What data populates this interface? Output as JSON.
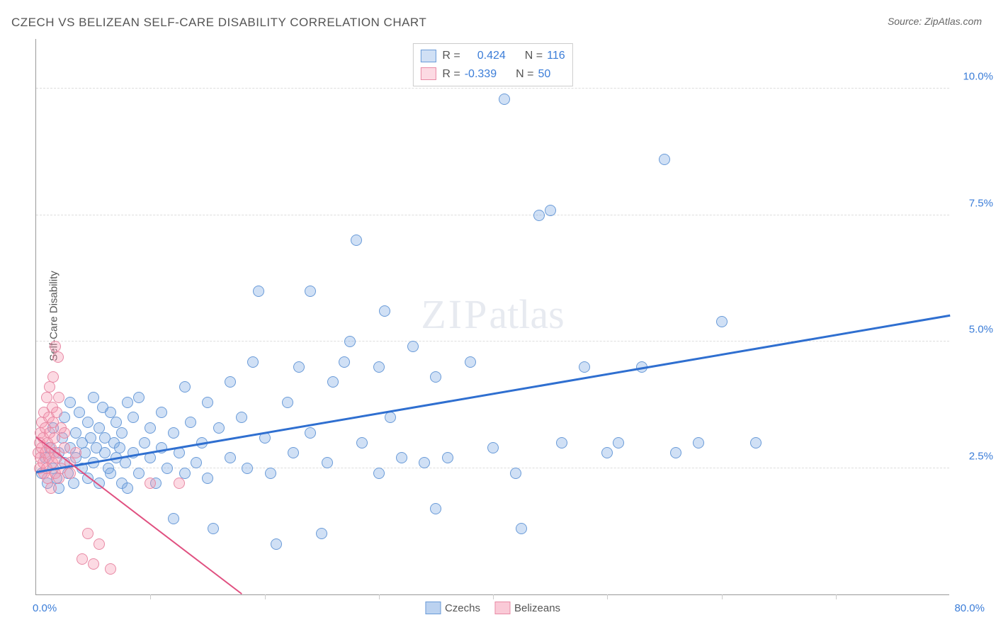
{
  "title": "CZECH VS BELIZEAN SELF-CARE DISABILITY CORRELATION CHART",
  "source": "Source: ZipAtlas.com",
  "ylabel": "Self-Care Disability",
  "watermark_zip": "ZIP",
  "watermark_atlas": "atlas",
  "chart": {
    "type": "scatter",
    "xlim": [
      0,
      80
    ],
    "ylim": [
      0,
      11
    ],
    "x_tick_step": 10,
    "y_ticks": [
      2.5,
      5.0,
      7.5,
      10.0
    ],
    "y_tick_labels": [
      "2.5%",
      "5.0%",
      "7.5%",
      "10.0%"
    ],
    "x_min_label": "0.0%",
    "x_max_label": "80.0%",
    "background_color": "#ffffff",
    "grid_color": "#dddddd",
    "axis_color": "#999999",
    "marker_radius": 8,
    "marker_stroke_width": 1.2,
    "series": [
      {
        "name": "Czechs",
        "fill": "rgba(120,165,225,0.35)",
        "stroke": "#6a9bd8",
        "trend_color": "#2f6fd0",
        "trend_width": 2.5,
        "R": "0.424",
        "N": "116",
        "trend": {
          "x1": 0,
          "y1": 2.4,
          "x2": 80,
          "y2": 5.5
        },
        "points": [
          [
            0.5,
            2.4
          ],
          [
            0.8,
            2.7
          ],
          [
            1.0,
            2.2
          ],
          [
            1.2,
            2.9
          ],
          [
            1.5,
            2.5
          ],
          [
            1.5,
            3.3
          ],
          [
            1.8,
            2.3
          ],
          [
            2.0,
            2.8
          ],
          [
            2.0,
            2.1
          ],
          [
            2.3,
            3.1
          ],
          [
            2.5,
            2.6
          ],
          [
            2.5,
            3.5
          ],
          [
            2.8,
            2.4
          ],
          [
            3.0,
            2.9
          ],
          [
            3.0,
            3.8
          ],
          [
            3.3,
            2.2
          ],
          [
            3.5,
            3.2
          ],
          [
            3.5,
            2.7
          ],
          [
            3.8,
            3.6
          ],
          [
            4.0,
            2.5
          ],
          [
            4.0,
            3.0
          ],
          [
            4.3,
            2.8
          ],
          [
            4.5,
            3.4
          ],
          [
            4.5,
            2.3
          ],
          [
            4.8,
            3.1
          ],
          [
            5.0,
            2.6
          ],
          [
            5.0,
            3.9
          ],
          [
            5.3,
            2.9
          ],
          [
            5.5,
            3.3
          ],
          [
            5.5,
            2.2
          ],
          [
            5.8,
            3.7
          ],
          [
            6.0,
            2.8
          ],
          [
            6.0,
            3.1
          ],
          [
            6.3,
            2.5
          ],
          [
            6.5,
            2.4
          ],
          [
            6.5,
            3.6
          ],
          [
            6.8,
            3.0
          ],
          [
            7.0,
            2.7
          ],
          [
            7.0,
            3.4
          ],
          [
            7.3,
            2.9
          ],
          [
            7.5,
            2.2
          ],
          [
            7.5,
            3.2
          ],
          [
            7.8,
            2.6
          ],
          [
            8.0,
            3.8
          ],
          [
            8.0,
            2.1
          ],
          [
            8.5,
            2.8
          ],
          [
            8.5,
            3.5
          ],
          [
            9.0,
            2.4
          ],
          [
            9.0,
            3.9
          ],
          [
            9.5,
            3.0
          ],
          [
            10.0,
            2.7
          ],
          [
            10.0,
            3.3
          ],
          [
            10.5,
            2.2
          ],
          [
            11.0,
            3.6
          ],
          [
            11.0,
            2.9
          ],
          [
            11.5,
            2.5
          ],
          [
            12.0,
            3.2
          ],
          [
            12.0,
            1.5
          ],
          [
            12.5,
            2.8
          ],
          [
            13.0,
            4.1
          ],
          [
            13.0,
            2.4
          ],
          [
            13.5,
            3.4
          ],
          [
            14.0,
            2.6
          ],
          [
            14.5,
            3.0
          ],
          [
            15.0,
            2.3
          ],
          [
            15.0,
            3.8
          ],
          [
            15.5,
            1.3
          ],
          [
            16.0,
            3.3
          ],
          [
            17.0,
            2.7
          ],
          [
            17.0,
            4.2
          ],
          [
            18.0,
            3.5
          ],
          [
            18.5,
            2.5
          ],
          [
            19.0,
            4.6
          ],
          [
            19.5,
            6.0
          ],
          [
            20.0,
            3.1
          ],
          [
            20.5,
            2.4
          ],
          [
            21.0,
            1.0
          ],
          [
            22.0,
            3.8
          ],
          [
            22.5,
            2.8
          ],
          [
            23.0,
            4.5
          ],
          [
            24.0,
            6.0
          ],
          [
            24.0,
            3.2
          ],
          [
            25.0,
            1.2
          ],
          [
            25.5,
            2.6
          ],
          [
            26.0,
            4.2
          ],
          [
            27.0,
            4.6
          ],
          [
            27.5,
            5.0
          ],
          [
            28.0,
            7.0
          ],
          [
            28.5,
            3.0
          ],
          [
            30.0,
            2.4
          ],
          [
            30.0,
            4.5
          ],
          [
            30.5,
            5.6
          ],
          [
            31.0,
            3.5
          ],
          [
            32.0,
            2.7
          ],
          [
            33.0,
            4.9
          ],
          [
            34.0,
            2.6
          ],
          [
            35.0,
            4.3
          ],
          [
            35.0,
            1.7
          ],
          [
            36.0,
            2.7
          ],
          [
            38.0,
            4.6
          ],
          [
            40.0,
            2.9
          ],
          [
            41.0,
            9.8
          ],
          [
            42.0,
            2.4
          ],
          [
            42.5,
            1.3
          ],
          [
            44.0,
            7.5
          ],
          [
            45.0,
            7.6
          ],
          [
            46.0,
            3.0
          ],
          [
            48.0,
            4.5
          ],
          [
            50.0,
            2.8
          ],
          [
            51.0,
            3.0
          ],
          [
            53.0,
            4.5
          ],
          [
            55.0,
            8.6
          ],
          [
            56.0,
            2.8
          ],
          [
            58.0,
            3.0
          ],
          [
            60.0,
            5.4
          ],
          [
            63.0,
            3.0
          ]
        ]
      },
      {
        "name": "Belizeans",
        "fill": "rgba(245,150,175,0.35)",
        "stroke": "#e88aa5",
        "trend_color": "#e05080",
        "trend_width": 2,
        "R": "-0.339",
        "N": "50",
        "trend": {
          "x1": 0,
          "y1": 3.1,
          "x2": 18,
          "y2": 0.0
        },
        "points": [
          [
            0.2,
            2.8
          ],
          [
            0.3,
            3.0
          ],
          [
            0.3,
            2.5
          ],
          [
            0.4,
            3.2
          ],
          [
            0.4,
            2.7
          ],
          [
            0.5,
            2.9
          ],
          [
            0.5,
            3.4
          ],
          [
            0.6,
            2.6
          ],
          [
            0.6,
            3.1
          ],
          [
            0.7,
            2.4
          ],
          [
            0.7,
            3.6
          ],
          [
            0.8,
            2.8
          ],
          [
            0.8,
            3.3
          ],
          [
            0.9,
            2.5
          ],
          [
            0.9,
            3.9
          ],
          [
            1.0,
            3.0
          ],
          [
            1.0,
            2.3
          ],
          [
            1.1,
            3.5
          ],
          [
            1.1,
            2.7
          ],
          [
            1.2,
            3.2
          ],
          [
            1.2,
            4.1
          ],
          [
            1.3,
            2.9
          ],
          [
            1.3,
            2.1
          ],
          [
            1.4,
            3.7
          ],
          [
            1.4,
            2.6
          ],
          [
            1.5,
            3.4
          ],
          [
            1.5,
            4.3
          ],
          [
            1.6,
            2.8
          ],
          [
            1.6,
            3.1
          ],
          [
            1.7,
            2.4
          ],
          [
            1.7,
            4.9
          ],
          [
            1.8,
            3.6
          ],
          [
            1.8,
            2.7
          ],
          [
            1.9,
            4.7
          ],
          [
            2.0,
            2.3
          ],
          [
            2.0,
            3.9
          ],
          [
            2.2,
            2.5
          ],
          [
            2.2,
            3.3
          ],
          [
            2.5,
            2.9
          ],
          [
            2.5,
            3.2
          ],
          [
            3.0,
            2.6
          ],
          [
            3.0,
            2.4
          ],
          [
            3.5,
            2.8
          ],
          [
            4.0,
            0.7
          ],
          [
            4.5,
            1.2
          ],
          [
            5.0,
            0.6
          ],
          [
            5.5,
            1.0
          ],
          [
            6.5,
            0.5
          ],
          [
            10.0,
            2.2
          ],
          [
            12.5,
            2.2
          ]
        ]
      }
    ]
  },
  "legend_bottom": [
    {
      "label": "Czechs",
      "swatch_fill": "rgba(120,165,225,0.5)",
      "swatch_stroke": "#6a9bd8"
    },
    {
      "label": "Belizeans",
      "swatch_fill": "rgba(245,150,175,0.5)",
      "swatch_stroke": "#e88aa5"
    }
  ]
}
